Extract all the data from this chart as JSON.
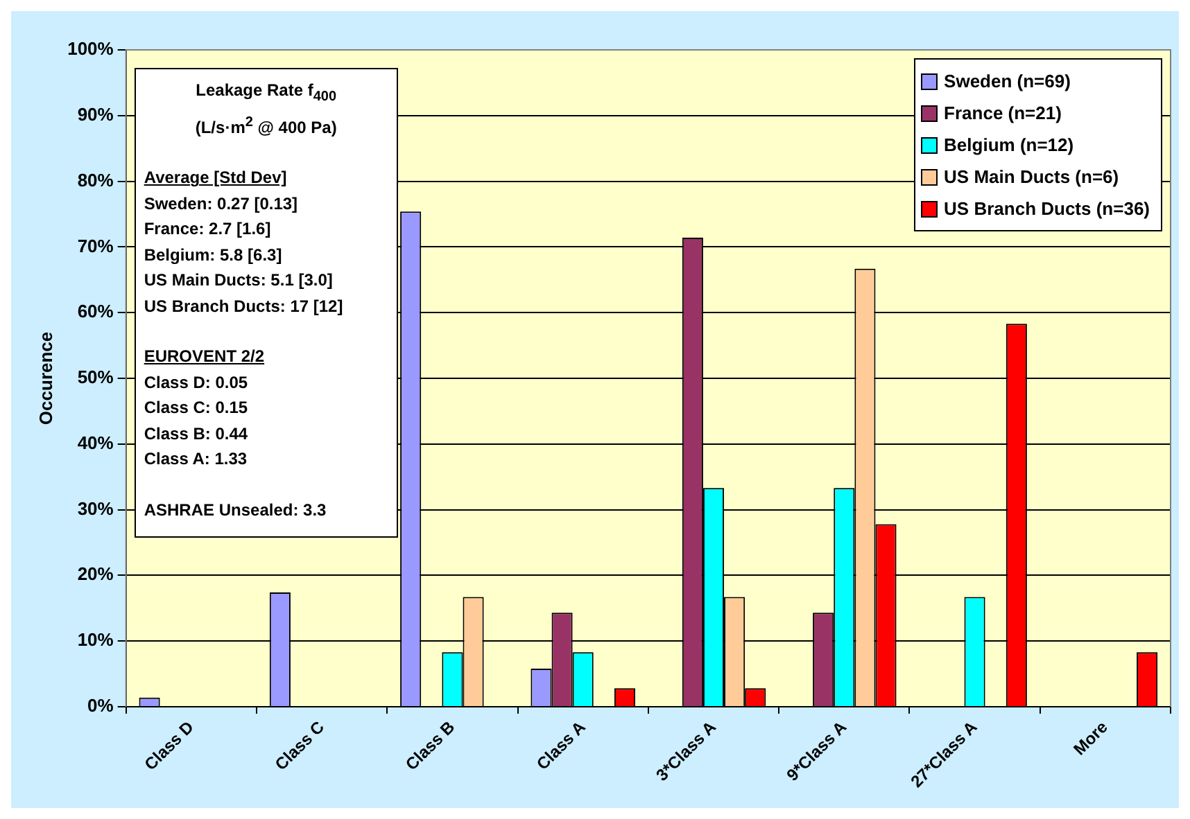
{
  "chart_data": {
    "type": "bar",
    "ylabel": "Occurence",
    "categories": [
      "Class D",
      "Class C",
      "Class B",
      "Class A",
      "3*Class A",
      "9*Class A",
      "27*Class A",
      "More"
    ],
    "series": [
      {
        "name": "Sweden (n=69)",
        "color": "#9999ff",
        "values": [
          1.4,
          17.4,
          75.4,
          5.8,
          0,
          0,
          0,
          0
        ]
      },
      {
        "name": "France (n=21)",
        "color": "#993366",
        "values": [
          0,
          0,
          0,
          14.3,
          71.4,
          14.3,
          0,
          0
        ]
      },
      {
        "name": "Belgium (n=12)",
        "color": "#00ffff",
        "values": [
          0,
          0,
          8.3,
          8.3,
          33.3,
          33.3,
          16.7,
          0
        ]
      },
      {
        "name": "US Main Ducts (n=6)",
        "color": "#ffcc99",
        "values": [
          0,
          0,
          16.7,
          0,
          16.7,
          66.7,
          0,
          0
        ]
      },
      {
        "name": "US Branch Ducts (n=36)",
        "color": "#ff0000",
        "values": [
          0,
          0,
          0,
          2.8,
          2.8,
          27.8,
          58.3,
          8.3
        ]
      }
    ],
    "ylim": [
      0,
      100
    ],
    "yticks": [
      {
        "value": 0,
        "label": "0%"
      },
      {
        "value": 10,
        "label": "10%"
      },
      {
        "value": 20,
        "label": "20%"
      },
      {
        "value": 30,
        "label": "30%"
      },
      {
        "value": 40,
        "label": "40%"
      },
      {
        "value": 50,
        "label": "50%"
      },
      {
        "value": 60,
        "label": "60%"
      },
      {
        "value": 70,
        "label": "70%"
      },
      {
        "value": 80,
        "label": "80%"
      },
      {
        "value": 90,
        "label": "90%"
      },
      {
        "value": 100,
        "label": "100%"
      }
    ],
    "grid": "y",
    "legend": "top right",
    "annotations": [
      "Leakage Rate f$_{400}$",
      "(L/s·m$^{2}$ @ 400 Pa)",
      "Average [Std Dev]",
      "Sweden: 0.27 [0.13]",
      "France: 2.7 [1.6]",
      "Belgium: 5.8 [6.3]",
      "US Main Ducts: 5.1 [3.0]",
      "US Branch Ducts: 17 [12]",
      "EUROVENT 2/2",
      "Class D: 0.05",
      "Class C: 0.15",
      "Class B: 0.44",
      "Class A: 1.33",
      "ASHRAE Unsealed: 3.3"
    ]
  }
}
